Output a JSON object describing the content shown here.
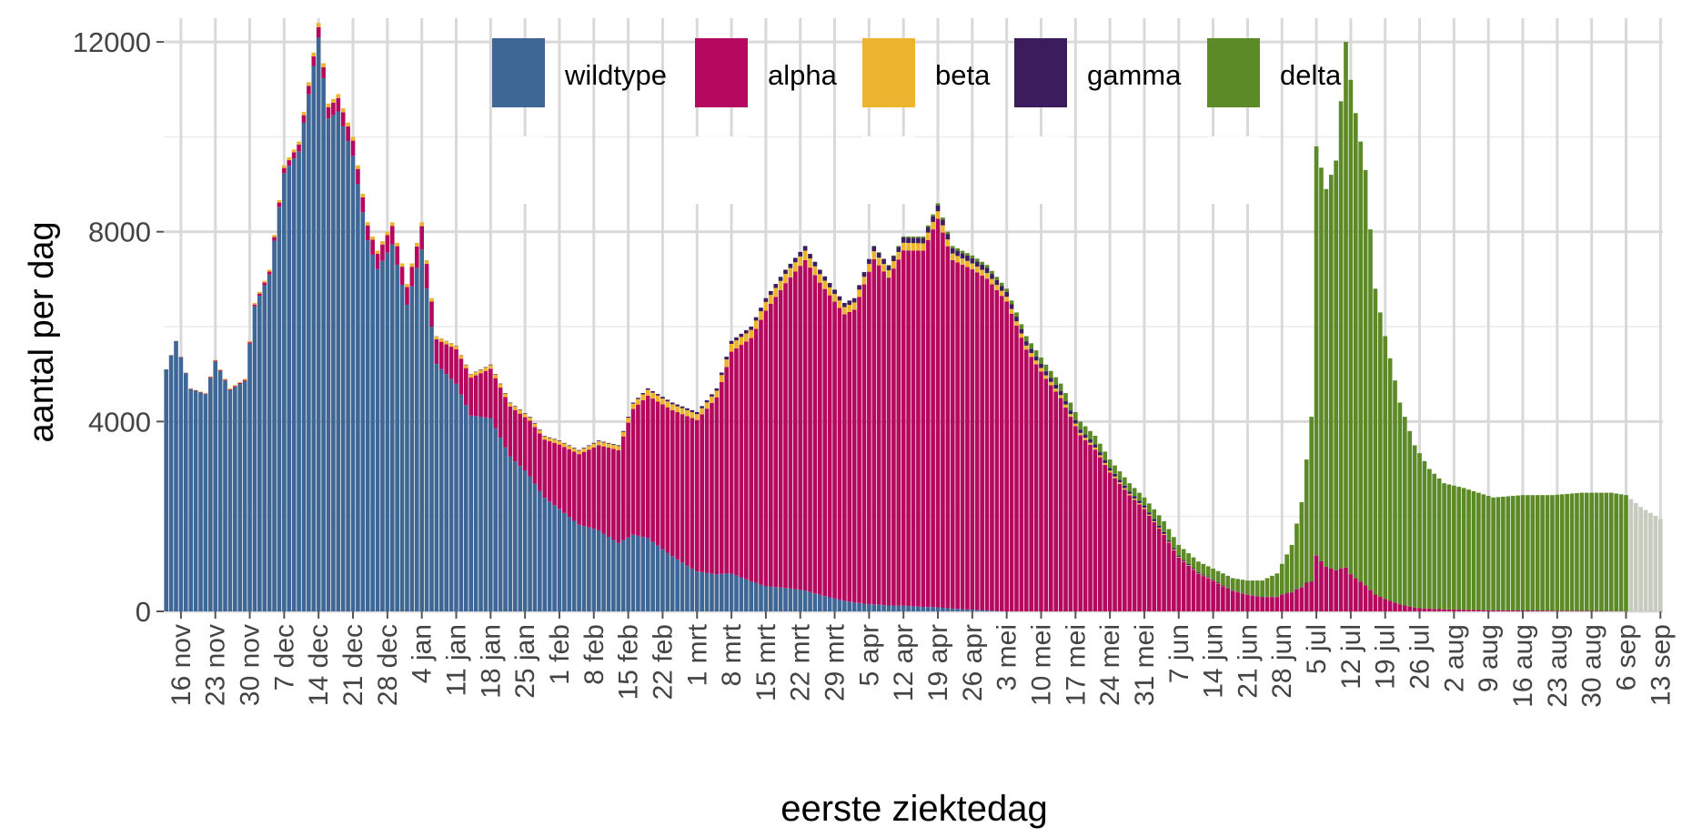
{
  "chart_data": {
    "type": "bar",
    "stacked": true,
    "xlabel": "eerste ziektedag",
    "ylabel": "aantal per dag",
    "ylim": [
      0,
      12500
    ],
    "yticks": [
      0,
      4000,
      8000,
      12000
    ],
    "x_range": [
      "2020-11-13",
      "2021-09-13"
    ],
    "xticks": [
      {
        "date": "2020-11-16",
        "label": "16 nov"
      },
      {
        "date": "2020-11-23",
        "label": "23 nov"
      },
      {
        "date": "2020-11-30",
        "label": "30 nov"
      },
      {
        "date": "2020-12-07",
        "label": "7 dec"
      },
      {
        "date": "2020-12-14",
        "label": "14 dec"
      },
      {
        "date": "2020-12-21",
        "label": "21 dec"
      },
      {
        "date": "2020-12-28",
        "label": "28 dec"
      },
      {
        "date": "2021-01-04",
        "label": "4 jan"
      },
      {
        "date": "2021-01-11",
        "label": "11 jan"
      },
      {
        "date": "2021-01-18",
        "label": "18 jan"
      },
      {
        "date": "2021-01-25",
        "label": "25 jan"
      },
      {
        "date": "2021-02-01",
        "label": "1 feb"
      },
      {
        "date": "2021-02-08",
        "label": "8 feb"
      },
      {
        "date": "2021-02-15",
        "label": "15 feb"
      },
      {
        "date": "2021-02-22",
        "label": "22 feb"
      },
      {
        "date": "2021-03-01",
        "label": "1 mrt"
      },
      {
        "date": "2021-03-08",
        "label": "8 mrt"
      },
      {
        "date": "2021-03-15",
        "label": "15 mrt"
      },
      {
        "date": "2021-03-22",
        "label": "22 mrt"
      },
      {
        "date": "2021-03-29",
        "label": "29 mrt"
      },
      {
        "date": "2021-04-05",
        "label": "5 apr"
      },
      {
        "date": "2021-04-12",
        "label": "12 apr"
      },
      {
        "date": "2021-04-19",
        "label": "19 apr"
      },
      {
        "date": "2021-04-26",
        "label": "26 apr"
      },
      {
        "date": "2021-05-03",
        "label": "3 mei"
      },
      {
        "date": "2021-05-10",
        "label": "10 mei"
      },
      {
        "date": "2021-05-17",
        "label": "17 mei"
      },
      {
        "date": "2021-05-24",
        "label": "24 mei"
      },
      {
        "date": "2021-05-31",
        "label": "31 mei"
      },
      {
        "date": "2021-06-07",
        "label": "7 jun"
      },
      {
        "date": "2021-06-14",
        "label": "14 jun"
      },
      {
        "date": "2021-06-21",
        "label": "21 jun"
      },
      {
        "date": "2021-06-28",
        "label": "28 jun"
      },
      {
        "date": "2021-07-05",
        "label": "5 jul"
      },
      {
        "date": "2021-07-12",
        "label": "12 jul"
      },
      {
        "date": "2021-07-19",
        "label": "19 jul"
      },
      {
        "date": "2021-07-26",
        "label": "26 jul"
      },
      {
        "date": "2021-08-02",
        "label": "2 aug"
      },
      {
        "date": "2021-08-09",
        "label": "9 aug"
      },
      {
        "date": "2021-08-16",
        "label": "16 aug"
      },
      {
        "date": "2021-08-23",
        "label": "23 aug"
      },
      {
        "date": "2021-08-30",
        "label": "30 aug"
      },
      {
        "date": "2021-09-06",
        "label": "6 sep"
      },
      {
        "date": "2021-09-13",
        "label": "13 sep"
      }
    ],
    "legend": {
      "position": "top-center"
    },
    "grid": true,
    "series": [
      {
        "name": "wildtype",
        "color": "#3e6796"
      },
      {
        "name": "alpha",
        "color": "#b5095f"
      },
      {
        "name": "beta",
        "color": "#edb42f"
      },
      {
        "name": "gamma",
        "color": "#3b1d5e"
      },
      {
        "name": "delta",
        "color": "#5b8a26"
      }
    ],
    "total_keypoints": [
      [
        "2020-11-13",
        5100
      ],
      [
        "2020-11-15",
        5700
      ],
      [
        "2020-11-18",
        4700
      ],
      [
        "2020-11-21",
        4600
      ],
      [
        "2020-11-23",
        5300
      ],
      [
        "2020-11-26",
        4700
      ],
      [
        "2020-11-29",
        4900
      ],
      [
        "2020-12-01",
        6500
      ],
      [
        "2020-12-04",
        7200
      ],
      [
        "2020-12-07",
        9400
      ],
      [
        "2020-12-10",
        9900
      ],
      [
        "2020-12-14",
        12400
      ],
      [
        "2020-12-16",
        10700
      ],
      [
        "2020-12-18",
        10900
      ],
      [
        "2020-12-21",
        10000
      ],
      [
        "2020-12-24",
        8200
      ],
      [
        "2020-12-26",
        7600
      ],
      [
        "2020-12-29",
        8200
      ],
      [
        "2021-01-01",
        6900
      ],
      [
        "2021-01-04",
        8200
      ],
      [
        "2021-01-07",
        5800
      ],
      [
        "2021-01-11",
        5600
      ],
      [
        "2021-01-14",
        5000
      ],
      [
        "2021-01-18",
        5200
      ],
      [
        "2021-01-22",
        4400
      ],
      [
        "2021-01-26",
        4100
      ],
      [
        "2021-01-29",
        3700
      ],
      [
        "2021-02-01",
        3600
      ],
      [
        "2021-02-05",
        3400
      ],
      [
        "2021-02-09",
        3600
      ],
      [
        "2021-02-13",
        3500
      ],
      [
        "2021-02-16",
        4400
      ],
      [
        "2021-02-19",
        4700
      ],
      [
        "2021-02-24",
        4400
      ],
      [
        "2021-03-01",
        4200
      ],
      [
        "2021-03-05",
        4700
      ],
      [
        "2021-03-08",
        5700
      ],
      [
        "2021-03-12",
        6000
      ],
      [
        "2021-03-15",
        6600
      ],
      [
        "2021-03-19",
        7200
      ],
      [
        "2021-03-23",
        7700
      ],
      [
        "2021-03-26",
        7200
      ],
      [
        "2021-03-31",
        6500
      ],
      [
        "2021-04-02",
        6600
      ],
      [
        "2021-04-06",
        7700
      ],
      [
        "2021-04-09",
        7300
      ],
      [
        "2021-04-12",
        7900
      ],
      [
        "2021-04-16",
        7900
      ],
      [
        "2021-04-19",
        8600
      ],
      [
        "2021-04-22",
        7700
      ],
      [
        "2021-04-26",
        7500
      ],
      [
        "2021-04-29",
        7300
      ],
      [
        "2021-05-03",
        6800
      ],
      [
        "2021-05-07",
        5800
      ],
      [
        "2021-05-11",
        5200
      ],
      [
        "2021-05-14",
        4800
      ],
      [
        "2021-05-18",
        4000
      ],
      [
        "2021-05-21",
        3700
      ],
      [
        "2021-05-24",
        3200
      ],
      [
        "2021-05-28",
        2700
      ],
      [
        "2021-05-31",
        2400
      ],
      [
        "2021-06-04",
        1900
      ],
      [
        "2021-06-07",
        1400
      ],
      [
        "2021-06-11",
        1050
      ],
      [
        "2021-06-14",
        900
      ],
      [
        "2021-06-18",
        700
      ],
      [
        "2021-06-21",
        650
      ],
      [
        "2021-06-24",
        650
      ],
      [
        "2021-06-27",
        800
      ],
      [
        "2021-06-30",
        1400
      ],
      [
        "2021-07-02",
        2300
      ],
      [
        "2021-07-04",
        4100
      ],
      [
        "2021-07-05",
        9800
      ],
      [
        "2021-07-07",
        8900
      ],
      [
        "2021-07-09",
        9500
      ],
      [
        "2021-07-11",
        12000
      ],
      [
        "2021-07-12",
        11200
      ],
      [
        "2021-07-13",
        10500
      ],
      [
        "2021-07-15",
        9300
      ],
      [
        "2021-07-17",
        6800
      ],
      [
        "2021-07-19",
        5800
      ],
      [
        "2021-07-22",
        4400
      ],
      [
        "2021-07-25",
        3500
      ],
      [
        "2021-07-28",
        3000
      ],
      [
        "2021-07-31",
        2700
      ],
      [
        "2021-08-04",
        2600
      ],
      [
        "2021-08-10",
        2400
      ],
      [
        "2021-08-16",
        2450
      ],
      [
        "2021-08-22",
        2450
      ],
      [
        "2021-08-28",
        2500
      ],
      [
        "2021-09-03",
        2500
      ],
      [
        "2021-09-06",
        2450
      ],
      [
        "2021-09-09",
        2200
      ],
      [
        "2021-09-13",
        1950
      ]
    ],
    "composition_keypoints": [
      [
        "2020-11-13",
        {
          "wildtype": 1,
          "alpha": 0,
          "beta": 0,
          "gamma": 0,
          "delta": 0
        }
      ],
      [
        "2020-11-30",
        {
          "wildtype": 0.99,
          "alpha": 0.005,
          "beta": 0.005,
          "gamma": 0,
          "delta": 0
        }
      ],
      [
        "2020-12-14",
        {
          "wildtype": 0.975,
          "alpha": 0.018,
          "beta": 0.007,
          "gamma": 0,
          "delta": 0
        }
      ],
      [
        "2021-01-04",
        {
          "wildtype": 0.93,
          "alpha": 0.06,
          "beta": 0.01,
          "gamma": 0,
          "delta": 0
        }
      ],
      [
        "2021-01-25",
        {
          "wildtype": 0.71,
          "alpha": 0.27,
          "beta": 0.017,
          "gamma": 0.003,
          "delta": 0
        }
      ],
      [
        "2021-02-15",
        {
          "wildtype": 0.38,
          "alpha": 0.59,
          "beta": 0.025,
          "gamma": 0.005,
          "delta": 0
        }
      ],
      [
        "2021-03-01",
        {
          "wildtype": 0.2,
          "alpha": 0.76,
          "beta": 0.03,
          "gamma": 0.01,
          "delta": 0
        }
      ],
      [
        "2021-03-15",
        {
          "wildtype": 0.08,
          "alpha": 0.88,
          "beta": 0.028,
          "gamma": 0.012,
          "delta": 0
        }
      ],
      [
        "2021-04-05",
        {
          "wildtype": 0.02,
          "alpha": 0.944,
          "beta": 0.022,
          "gamma": 0.014,
          "delta": 0
        }
      ],
      [
        "2021-05-03",
        {
          "wildtype": 0,
          "alpha": 0.96,
          "beta": 0.015,
          "gamma": 0.015,
          "delta": 0.01
        }
      ],
      [
        "2021-05-31",
        {
          "wildtype": 0,
          "alpha": 0.9,
          "beta": 0.01,
          "gamma": 0.02,
          "delta": 0.07
        }
      ],
      [
        "2021-06-14",
        {
          "wildtype": 0,
          "alpha": 0.72,
          "beta": 0.01,
          "gamma": 0.02,
          "delta": 0.25
        }
      ],
      [
        "2021-06-28",
        {
          "wildtype": 0,
          "alpha": 0.35,
          "beta": 0,
          "gamma": 0.01,
          "delta": 0.64
        }
      ],
      [
        "2021-07-05",
        {
          "wildtype": 0,
          "alpha": 0.12,
          "beta": 0,
          "gamma": 0,
          "delta": 0.88
        }
      ],
      [
        "2021-07-12",
        {
          "wildtype": 0,
          "alpha": 0.07,
          "beta": 0,
          "gamma": 0,
          "delta": 0.93
        }
      ],
      [
        "2021-07-26",
        {
          "wildtype": 0,
          "alpha": 0.02,
          "beta": 0,
          "gamma": 0,
          "delta": 0.98
        }
      ],
      [
        "2021-08-09",
        {
          "wildtype": 0,
          "alpha": 0.01,
          "beta": 0,
          "gamma": 0,
          "delta": 0.99
        }
      ],
      [
        "2021-09-13",
        {
          "wildtype": 0,
          "alpha": 0,
          "beta": 0,
          "gamma": 0,
          "delta": 1
        }
      ]
    ],
    "incomplete_from": "2021-09-07",
    "incomplete_color": "#c5ccbd"
  }
}
